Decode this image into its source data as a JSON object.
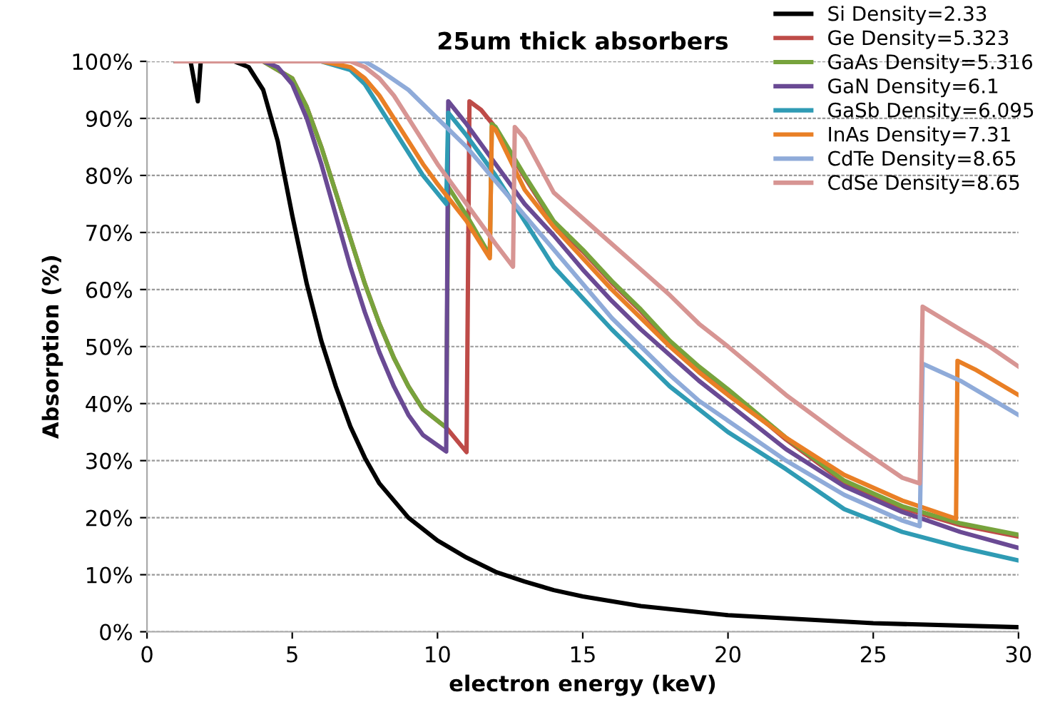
{
  "chart_data": {
    "type": "line",
    "title": "25um thick absorbers",
    "xlabel": "electron energy (keV)",
    "ylabel": "Absorption (%)",
    "xlim": [
      0,
      30
    ],
    "xticks": [
      0,
      5,
      10,
      15,
      20,
      25,
      30
    ],
    "ylim": [
      0,
      100
    ],
    "yticks": [
      {
        "value": 0,
        "label": "0%"
      },
      {
        "value": 10,
        "label": "10%"
      },
      {
        "value": 20,
        "label": "20%"
      },
      {
        "value": 30,
        "label": "30%"
      },
      {
        "value": 40,
        "label": "40%"
      },
      {
        "value": 50,
        "label": "50%"
      },
      {
        "value": 60,
        "label": "60%"
      },
      {
        "value": 70,
        "label": "70%"
      },
      {
        "value": 80,
        "label": "80%"
      },
      {
        "value": 90,
        "label": "90%"
      },
      {
        "value": 100,
        "label": "100%"
      }
    ],
    "grid": "y",
    "legend": "top right",
    "marker": "none",
    "line_style": "solid",
    "series": [
      {
        "name": "Si Density=2.33",
        "color": "#000000",
        "x": [
          1,
          1.5,
          1.75,
          1.85,
          3,
          3.5,
          4,
          4.5,
          5,
          5.5,
          6,
          6.5,
          7,
          7.5,
          8,
          9,
          10,
          11,
          12,
          13,
          14,
          15,
          17,
          20,
          25,
          30
        ],
        "values": [
          100,
          100,
          93,
          100,
          100,
          99,
          95,
          86,
          73,
          61,
          51,
          43,
          36,
          30.5,
          26,
          20,
          16,
          13,
          10.5,
          8.8,
          7.3,
          6.2,
          4.5,
          2.9,
          1.5,
          0.8
        ]
      },
      {
        "name": "Ge Density=5.323",
        "color": "#be4b48",
        "x": [
          1,
          4,
          5,
          5.5,
          6,
          6.5,
          7,
          7.5,
          8,
          8.5,
          9,
          9.5,
          10.3,
          11.0,
          11.1,
          11.5,
          11.9,
          12,
          13,
          14,
          15,
          16,
          17,
          18,
          19,
          20,
          22,
          24,
          26,
          28,
          30
        ],
        "values": [
          100,
          100,
          97,
          92,
          85,
          77,
          69,
          61,
          54,
          48,
          43,
          39,
          35.8,
          31.5,
          93,
          91.5,
          89,
          88.2,
          79.7,
          71.7,
          66.7,
          61.2,
          56.2,
          50.7,
          46.2,
          42.2,
          33.7,
          26.2,
          21.7,
          18.7,
          16.7
        ]
      },
      {
        "name": "GaAs Density=5.316",
        "color": "#77a33c",
        "x": [
          1,
          4,
          5,
          5.5,
          6,
          6.5,
          7,
          7.5,
          8,
          8.5,
          9,
          9.5,
          10.3,
          10.37,
          11,
          11.8,
          11.87,
          12,
          13,
          14,
          15,
          16,
          17,
          18,
          19,
          20,
          22,
          24,
          26,
          28,
          30
        ],
        "values": [
          100,
          100,
          97,
          92,
          85,
          77,
          69,
          61,
          54,
          48,
          43,
          39,
          35.8,
          78,
          73,
          66,
          89,
          88.5,
          80,
          72,
          67,
          61.5,
          56.5,
          51,
          46.5,
          42.5,
          34,
          26.5,
          22,
          19,
          17
        ]
      },
      {
        "name": "GaN Density=6.1",
        "color": "#6a4a94",
        "x": [
          1,
          4,
          4.5,
          5,
          5.5,
          6,
          6.5,
          7,
          7.5,
          8,
          8.5,
          9,
          9.5,
          10.3,
          10.37,
          11,
          12,
          13,
          14,
          15,
          16,
          17,
          18,
          19,
          20,
          22,
          24,
          26,
          28,
          30
        ],
        "values": [
          100,
          100,
          99,
          96,
          90,
          82,
          73,
          64,
          56,
          49,
          43,
          38,
          34.5,
          31.6,
          93,
          89,
          82,
          75,
          69.5,
          63.5,
          58,
          53,
          48.5,
          44,
          40,
          32,
          25.5,
          21,
          17.5,
          14.7
        ]
      },
      {
        "name": "GaSb Density=6.095",
        "color": "#2f9bb4",
        "x": [
          1,
          6,
          7,
          7.5,
          8,
          8.5,
          9,
          9.5,
          10.3,
          10.37,
          11,
          12,
          13,
          14,
          15,
          16,
          17,
          18,
          19,
          20,
          22,
          24,
          26,
          28,
          30
        ],
        "values": [
          100,
          100,
          98.5,
          96,
          92,
          88,
          84,
          80,
          75,
          91,
          87,
          80,
          72,
          64,
          58.5,
          53,
          48,
          43,
          39,
          35,
          28.5,
          21.5,
          17.5,
          14.8,
          12.5
        ]
      },
      {
        "name": "InAs Density=7.31",
        "color": "#e97f25",
        "x": [
          1,
          6,
          7,
          7.5,
          8,
          8.5,
          9,
          9.5,
          10,
          11,
          11.8,
          11.87,
          12,
          13,
          14,
          15,
          16,
          17,
          18,
          19,
          20,
          22,
          24,
          26,
          27.85,
          27.9,
          28.5,
          29,
          30
        ],
        "values": [
          100,
          100,
          99,
          97,
          94,
          90,
          86,
          82,
          78.5,
          72,
          65.5,
          88.5,
          88,
          77.5,
          71,
          65.5,
          60,
          55,
          50,
          45.5,
          41.5,
          34,
          27.5,
          23,
          19.8,
          47.5,
          46,
          44.5,
          41.5
        ]
      },
      {
        "name": "CdTe Density=8.65",
        "color": "#8fabd9",
        "x": [
          1,
          7.5,
          8,
          9,
          10,
          11,
          12,
          13,
          14,
          15,
          16,
          17,
          18,
          19,
          20,
          22,
          24,
          26,
          26.6,
          26.7,
          28,
          29,
          30
        ],
        "values": [
          100,
          100,
          98.5,
          95,
          90,
          85,
          79,
          73,
          67,
          61,
          55,
          50,
          45,
          40.5,
          37,
          30,
          24,
          19.5,
          18.5,
          47,
          44,
          41,
          38
        ]
      },
      {
        "name": "CdSe Density=8.65",
        "color": "#d79593",
        "x": [
          1,
          7,
          7.5,
          8,
          8.5,
          9,
          9.5,
          10,
          11,
          12,
          12.6,
          12.66,
          13,
          14,
          15,
          16,
          17,
          18,
          19,
          20,
          22,
          24,
          25,
          26,
          26.6,
          26.7,
          28,
          29,
          30
        ],
        "values": [
          100,
          100,
          99,
          97,
          94,
          90,
          86,
          82,
          75,
          68,
          64,
          88.5,
          86.5,
          77,
          72.5,
          68,
          63.5,
          59,
          54,
          50,
          41.5,
          34,
          30.5,
          27,
          26,
          57,
          53,
          50,
          46.5
        ]
      }
    ]
  }
}
